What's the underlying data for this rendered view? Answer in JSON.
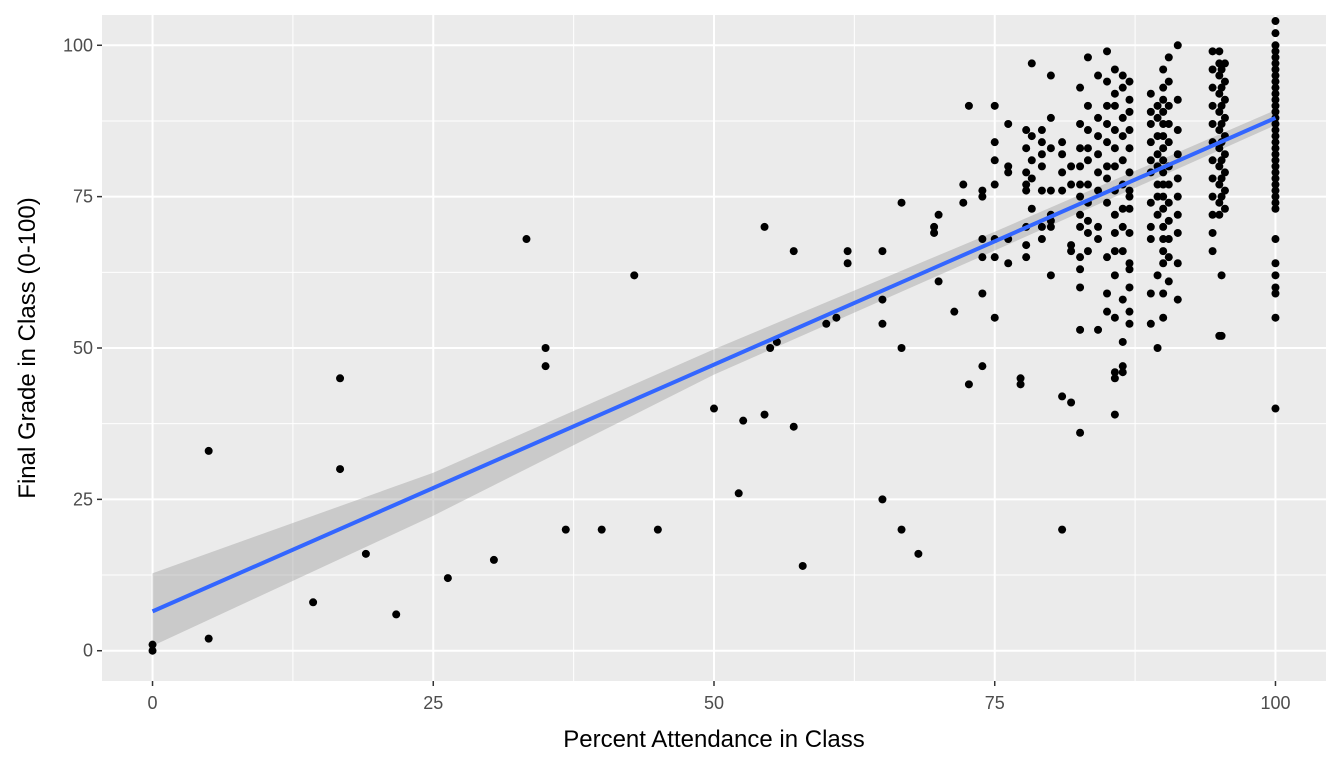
{
  "chart_data": {
    "type": "scatter",
    "title": "",
    "xlabel": "Percent Attendance in Class",
    "ylabel": "Final Grade in Class (0-100)",
    "xlim": [
      -4.5,
      104.5
    ],
    "ylim": [
      -5,
      105
    ],
    "x_ticks": [
      0,
      25,
      50,
      75,
      100
    ],
    "y_ticks": [
      0,
      25,
      50,
      75,
      100
    ],
    "grid": true,
    "legend": "none",
    "colors": {
      "panel": "#EBEBEB",
      "grid": "#FFFFFF",
      "points": "#000000",
      "fit_line": "#3366FF",
      "ci_band": "#999999"
    },
    "fit": {
      "method": "linear",
      "intercept": 6.5,
      "slope": 0.815,
      "x_range": [
        0,
        100
      ],
      "ci_lower": [
        [
          0,
          0.8
        ],
        [
          25,
          22.3
        ],
        [
          50,
          45.6
        ],
        [
          75,
          66.1
        ],
        [
          100,
          86.8
        ]
      ],
      "ci_upper": [
        [
          0,
          12.8
        ],
        [
          25,
          29.4
        ],
        [
          50,
          49.8
        ],
        [
          75,
          69.2
        ],
        [
          100,
          89.3
        ]
      ]
    },
    "points": [
      [
        0,
        0
      ],
      [
        0,
        1
      ],
      [
        5,
        33
      ],
      [
        5,
        2
      ],
      [
        14.3,
        8
      ],
      [
        16.7,
        45
      ],
      [
        16.7,
        30
      ],
      [
        19,
        16
      ],
      [
        21.7,
        6
      ],
      [
        26.3,
        12
      ],
      [
        30.4,
        15
      ],
      [
        33.3,
        68
      ],
      [
        35,
        50
      ],
      [
        35,
        47
      ],
      [
        36.8,
        20
      ],
      [
        40,
        20
      ],
      [
        42.9,
        62
      ],
      [
        45,
        20
      ],
      [
        50,
        40
      ],
      [
        52.2,
        26
      ],
      [
        52.6,
        38
      ],
      [
        54.5,
        39
      ],
      [
        54.5,
        70
      ],
      [
        55,
        50
      ],
      [
        55.6,
        51
      ],
      [
        57.1,
        37
      ],
      [
        57.1,
        66
      ],
      [
        57.9,
        14
      ],
      [
        60,
        54
      ],
      [
        60.9,
        55
      ],
      [
        61.9,
        66
      ],
      [
        61.9,
        64
      ],
      [
        65,
        66
      ],
      [
        65,
        25
      ],
      [
        65,
        58
      ],
      [
        65,
        54
      ],
      [
        66.7,
        74
      ],
      [
        66.7,
        50
      ],
      [
        66.7,
        20
      ],
      [
        68.2,
        16
      ],
      [
        69.6,
        70
      ],
      [
        69.6,
        69
      ],
      [
        70,
        72
      ],
      [
        70,
        61
      ],
      [
        71.4,
        56
      ],
      [
        72.2,
        77
      ],
      [
        72.2,
        74
      ],
      [
        72.7,
        90
      ],
      [
        72.7,
        44
      ],
      [
        73.9,
        76
      ],
      [
        73.9,
        75
      ],
      [
        73.9,
        68
      ],
      [
        73.9,
        65
      ],
      [
        73.9,
        59
      ],
      [
        73.9,
        47
      ],
      [
        75,
        90
      ],
      [
        75,
        84
      ],
      [
        75,
        81
      ],
      [
        75,
        77
      ],
      [
        75,
        68
      ],
      [
        75,
        65
      ],
      [
        75,
        55
      ],
      [
        76.2,
        87
      ],
      [
        76.2,
        80
      ],
      [
        76.2,
        79
      ],
      [
        76.2,
        68
      ],
      [
        76.2,
        64
      ],
      [
        77.3,
        44
      ],
      [
        77.3,
        45
      ],
      [
        77.8,
        86
      ],
      [
        77.8,
        83
      ],
      [
        77.8,
        79
      ],
      [
        77.8,
        77
      ],
      [
        77.8,
        76
      ],
      [
        77.8,
        70
      ],
      [
        77.8,
        67
      ],
      [
        77.8,
        65
      ],
      [
        78.3,
        97
      ],
      [
        78.3,
        85
      ],
      [
        78.3,
        81
      ],
      [
        78.3,
        78
      ],
      [
        78.3,
        73
      ],
      [
        79.2,
        86
      ],
      [
        79.2,
        84
      ],
      [
        79.2,
        82
      ],
      [
        79.2,
        80
      ],
      [
        79.2,
        76
      ],
      [
        79.2,
        70
      ],
      [
        79.2,
        68
      ],
      [
        80,
        95
      ],
      [
        80,
        88
      ],
      [
        80,
        83
      ],
      [
        80,
        76
      ],
      [
        80,
        72
      ],
      [
        80,
        71
      ],
      [
        80,
        70
      ],
      [
        80,
        62
      ],
      [
        81,
        84
      ],
      [
        81,
        82
      ],
      [
        81,
        79
      ],
      [
        81,
        76
      ],
      [
        81,
        42
      ],
      [
        81,
        20
      ],
      [
        81.8,
        80
      ],
      [
        81.8,
        77
      ],
      [
        81.8,
        67
      ],
      [
        81.8,
        66
      ],
      [
        81.8,
        41
      ],
      [
        82.6,
        93
      ],
      [
        82.6,
        87
      ],
      [
        82.6,
        83
      ],
      [
        82.6,
        80
      ],
      [
        82.6,
        77
      ],
      [
        82.6,
        75
      ],
      [
        82.6,
        72
      ],
      [
        82.6,
        70
      ],
      [
        82.6,
        65
      ],
      [
        82.6,
        63
      ],
      [
        82.6,
        60
      ],
      [
        82.6,
        53
      ],
      [
        82.6,
        36
      ],
      [
        83.3,
        98
      ],
      [
        83.3,
        90
      ],
      [
        83.3,
        86
      ],
      [
        83.3,
        83
      ],
      [
        83.3,
        81
      ],
      [
        83.3,
        77
      ],
      [
        83.3,
        74
      ],
      [
        83.3,
        71
      ],
      [
        83.3,
        69
      ],
      [
        83.3,
        66
      ],
      [
        84.2,
        95
      ],
      [
        84.2,
        88
      ],
      [
        84.2,
        85
      ],
      [
        84.2,
        82
      ],
      [
        84.2,
        79
      ],
      [
        84.2,
        76
      ],
      [
        84.2,
        70
      ],
      [
        84.2,
        68
      ],
      [
        84.2,
        53
      ],
      [
        85,
        99
      ],
      [
        85,
        94
      ],
      [
        85,
        90
      ],
      [
        85,
        87
      ],
      [
        85,
        84
      ],
      [
        85,
        80
      ],
      [
        85,
        78
      ],
      [
        85,
        74
      ],
      [
        85,
        65
      ],
      [
        85,
        59
      ],
      [
        85,
        56
      ],
      [
        85.7,
        96
      ],
      [
        85.7,
        92
      ],
      [
        85.7,
        90
      ],
      [
        85.7,
        86
      ],
      [
        85.7,
        83
      ],
      [
        85.7,
        80
      ],
      [
        85.7,
        76
      ],
      [
        85.7,
        72
      ],
      [
        85.7,
        69
      ],
      [
        85.7,
        66
      ],
      [
        85.7,
        62
      ],
      [
        85.7,
        55
      ],
      [
        85.7,
        46
      ],
      [
        85.7,
        45
      ],
      [
        85.7,
        39
      ],
      [
        86.4,
        95
      ],
      [
        86.4,
        93
      ],
      [
        86.4,
        88
      ],
      [
        86.4,
        85
      ],
      [
        86.4,
        81
      ],
      [
        86.4,
        77
      ],
      [
        86.4,
        73
      ],
      [
        86.4,
        70
      ],
      [
        86.4,
        66
      ],
      [
        86.4,
        58
      ],
      [
        86.4,
        51
      ],
      [
        86.4,
        47
      ],
      [
        86.4,
        46
      ],
      [
        87,
        94
      ],
      [
        87,
        91
      ],
      [
        87,
        89
      ],
      [
        87,
        86
      ],
      [
        87,
        83
      ],
      [
        87,
        79
      ],
      [
        87,
        76
      ],
      [
        87,
        75
      ],
      [
        87,
        73
      ],
      [
        87,
        69
      ],
      [
        87,
        64
      ],
      [
        87,
        63
      ],
      [
        87,
        60
      ],
      [
        87,
        56
      ],
      [
        87,
        54
      ],
      [
        88.9,
        92
      ],
      [
        88.9,
        89
      ],
      [
        88.9,
        87
      ],
      [
        88.9,
        84
      ],
      [
        88.9,
        81
      ],
      [
        88.9,
        79
      ],
      [
        88.9,
        74
      ],
      [
        88.9,
        70
      ],
      [
        88.9,
        68
      ],
      [
        88.9,
        59
      ],
      [
        88.9,
        54
      ],
      [
        89.5,
        90
      ],
      [
        89.5,
        88
      ],
      [
        89.5,
        85
      ],
      [
        89.5,
        82
      ],
      [
        89.5,
        80
      ],
      [
        89.5,
        77
      ],
      [
        89.5,
        75
      ],
      [
        89.5,
        72
      ],
      [
        89.5,
        62
      ],
      [
        89.5,
        50
      ],
      [
        90,
        96
      ],
      [
        90,
        93
      ],
      [
        90,
        91
      ],
      [
        90,
        89
      ],
      [
        90,
        87
      ],
      [
        90,
        85
      ],
      [
        90,
        83
      ],
      [
        90,
        81
      ],
      [
        90,
        79
      ],
      [
        90,
        77
      ],
      [
        90,
        75
      ],
      [
        90,
        73
      ],
      [
        90,
        70
      ],
      [
        90,
        68
      ],
      [
        90,
        66
      ],
      [
        90,
        64
      ],
      [
        90,
        59
      ],
      [
        90,
        55
      ],
      [
        90.5,
        98
      ],
      [
        90.5,
        94
      ],
      [
        90.5,
        90
      ],
      [
        90.5,
        87
      ],
      [
        90.5,
        84
      ],
      [
        90.5,
        80
      ],
      [
        90.5,
        77
      ],
      [
        90.5,
        74
      ],
      [
        90.5,
        71
      ],
      [
        90.5,
        68
      ],
      [
        90.5,
        65
      ],
      [
        90.5,
        61
      ],
      [
        91.3,
        100
      ],
      [
        91.3,
        91
      ],
      [
        91.3,
        86
      ],
      [
        91.3,
        82
      ],
      [
        91.3,
        78
      ],
      [
        91.3,
        75
      ],
      [
        91.3,
        72
      ],
      [
        91.3,
        69
      ],
      [
        91.3,
        64
      ],
      [
        91.3,
        58
      ],
      [
        94.4,
        99
      ],
      [
        94.4,
        96
      ],
      [
        94.4,
        93
      ],
      [
        94.4,
        90
      ],
      [
        94.4,
        87
      ],
      [
        94.4,
        84
      ],
      [
        94.4,
        81
      ],
      [
        94.4,
        78
      ],
      [
        94.4,
        75
      ],
      [
        94.4,
        72
      ],
      [
        94.4,
        69
      ],
      [
        94.4,
        66
      ],
      [
        95,
        99
      ],
      [
        95,
        97
      ],
      [
        95,
        95
      ],
      [
        95,
        92
      ],
      [
        95,
        89
      ],
      [
        95,
        86
      ],
      [
        95,
        83
      ],
      [
        95,
        80
      ],
      [
        95,
        77
      ],
      [
        95,
        74
      ],
      [
        95,
        72
      ],
      [
        95,
        52
      ],
      [
        95.2,
        96
      ],
      [
        95.2,
        93
      ],
      [
        95.2,
        90
      ],
      [
        95.2,
        87
      ],
      [
        95.2,
        84
      ],
      [
        95.2,
        81
      ],
      [
        95.2,
        78
      ],
      [
        95.2,
        75
      ],
      [
        95.2,
        62
      ],
      [
        95.2,
        52
      ],
      [
        95.5,
        97
      ],
      [
        95.5,
        94
      ],
      [
        95.5,
        91
      ],
      [
        95.5,
        88
      ],
      [
        95.5,
        85
      ],
      [
        95.5,
        82
      ],
      [
        95.5,
        79
      ],
      [
        95.5,
        76
      ],
      [
        95.5,
        73
      ],
      [
        100,
        104
      ],
      [
        100,
        102
      ],
      [
        100,
        100
      ],
      [
        100,
        99
      ],
      [
        100,
        98
      ],
      [
        100,
        97
      ],
      [
        100,
        96
      ],
      [
        100,
        95
      ],
      [
        100,
        94
      ],
      [
        100,
        93
      ],
      [
        100,
        92
      ],
      [
        100,
        91
      ],
      [
        100,
        90
      ],
      [
        100,
        89
      ],
      [
        100,
        88
      ],
      [
        100,
        87
      ],
      [
        100,
        86
      ],
      [
        100,
        85
      ],
      [
        100,
        84
      ],
      [
        100,
        83
      ],
      [
        100,
        82
      ],
      [
        100,
        81
      ],
      [
        100,
        80
      ],
      [
        100,
        79
      ],
      [
        100,
        78
      ],
      [
        100,
        77
      ],
      [
        100,
        76
      ],
      [
        100,
        75
      ],
      [
        100,
        74
      ],
      [
        100,
        73
      ],
      [
        100,
        68
      ],
      [
        100,
        64
      ],
      [
        100,
        62
      ],
      [
        100,
        60
      ],
      [
        100,
        59
      ],
      [
        100,
        55
      ],
      [
        100,
        40
      ]
    ]
  }
}
